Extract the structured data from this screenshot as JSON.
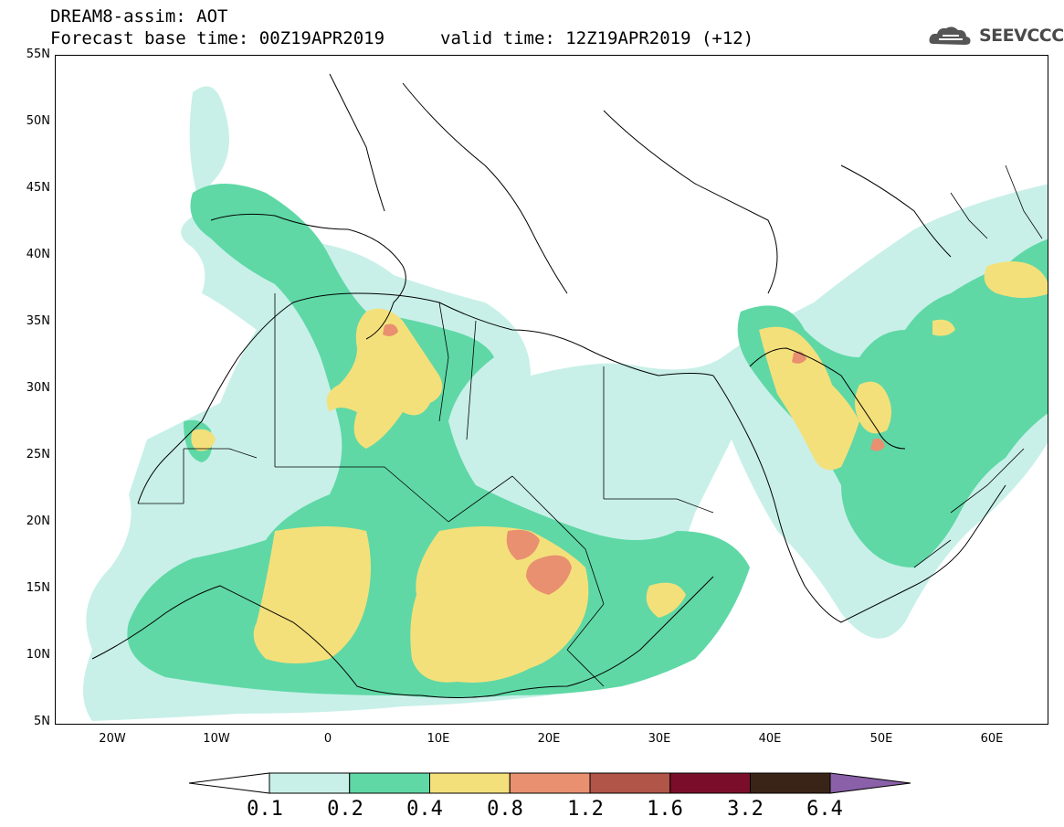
{
  "title": {
    "line1": "DREAM8-assim: AOT",
    "line2": "Forecast base time: 00Z19APR2019",
    "valid": "valid time: 12Z19APR2019 (+12)"
  },
  "logo": {
    "text": "SEEVCCC",
    "icon": "cloud-logo-icon"
  },
  "axes": {
    "lat_labels": [
      "55N",
      "50N",
      "45N",
      "40N",
      "35N",
      "30N",
      "25N",
      "20N",
      "15N",
      "10N",
      "5N"
    ],
    "lon_labels": [
      "20W",
      "10W",
      "0",
      "10E",
      "20E",
      "30E",
      "40E",
      "50E",
      "60E"
    ]
  },
  "colorbar": {
    "labels": [
      "0.1",
      "0.2",
      "0.4",
      "0.8",
      "1.2",
      "1.6",
      "3.2",
      "6.4"
    ],
    "colors": [
      "#c8f0e8",
      "#5fd8a6",
      "#f4e07a",
      "#e89070",
      "#b05548",
      "#7a0e2a",
      "#3a2418",
      "#8a60a8"
    ]
  },
  "map": {
    "projection": "lat-lon",
    "lat_range": [
      5,
      55
    ],
    "lon_range": [
      -25,
      65
    ]
  }
}
